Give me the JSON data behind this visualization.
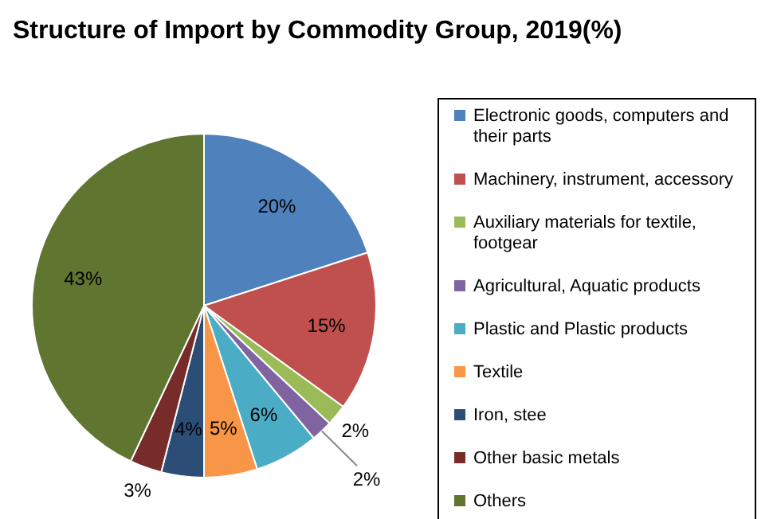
{
  "chart_data": {
    "type": "pie",
    "title": "Structure of Import by Commodity Group, 2019(%)",
    "categories": [
      "Electronic goods, computers and their parts",
      "Machinery, instrument, accessory",
      "Auxiliary materials for textile, footgear",
      "Agricultural, Aquatic products",
      "Plastic and Plastic products",
      "Textile",
      "Iron, stee",
      "Other basic metals",
      "Others"
    ],
    "values": [
      20,
      15,
      2,
      2,
      6,
      5,
      4,
      3,
      43
    ],
    "colors": [
      "#4f81bd",
      "#c0504d",
      "#9bbb59",
      "#8064a2",
      "#4bacc6",
      "#f79646",
      "#2c4d75",
      "#772c2a",
      "#5f7530"
    ],
    "value_labels": [
      "20%",
      "15%",
      "2%",
      "2%",
      "6%",
      "5%",
      "4%",
      "3%",
      "43%"
    ],
    "legend": "right"
  }
}
